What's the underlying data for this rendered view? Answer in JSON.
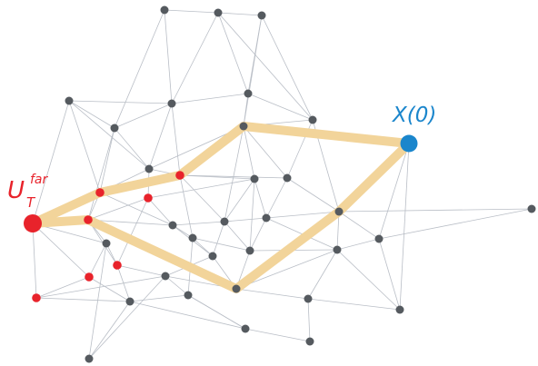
{
  "labels": {
    "source": "X(0)",
    "target_main": "U",
    "target_sub": "T",
    "target_sup": "far"
  },
  "colors": {
    "node_default": "#555a5f",
    "node_red": "#e8232b",
    "node_source": "#1b86cc",
    "edge": "#b9bec6",
    "highlight_path": "#f2d49a",
    "source_label": "#1b86cc",
    "target_label": "#e8232b"
  }
}
